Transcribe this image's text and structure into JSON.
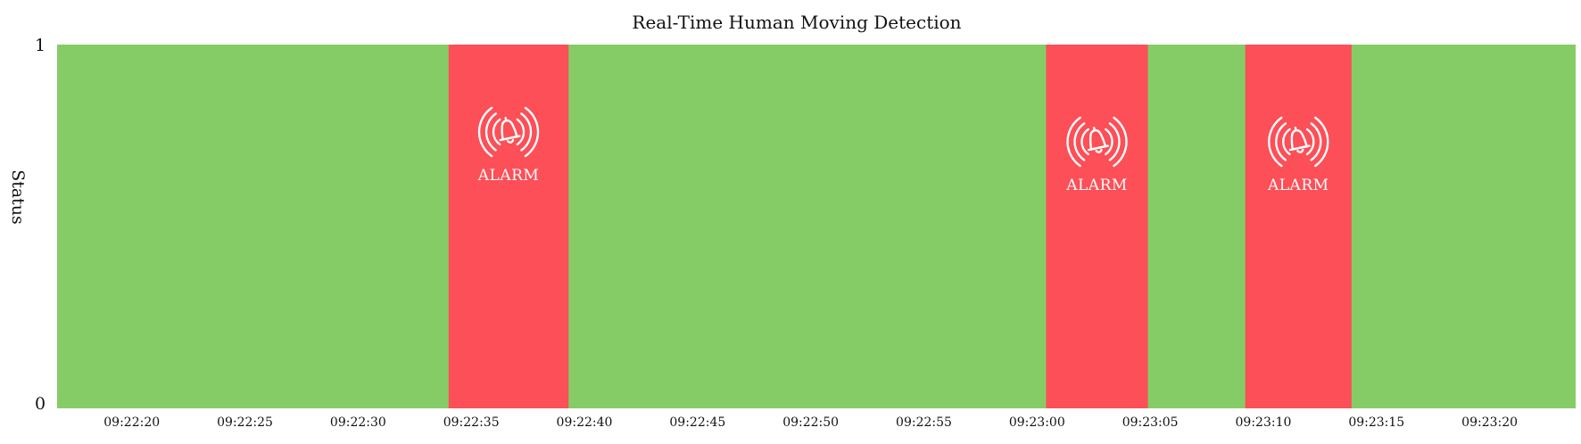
{
  "chart_data": {
    "type": "area",
    "title": "Real-Time Human Moving Detection",
    "xlabel": "",
    "ylabel": "Status",
    "ylim": [
      0,
      1
    ],
    "yticks": [
      "0",
      "1"
    ],
    "xticks": [
      "09:22:20",
      "09:22:25",
      "09:22:30",
      "09:22:35",
      "09:22:40",
      "09:22:45",
      "09:22:50",
      "09:22:55",
      "09:23:00",
      "09:23:05",
      "09:23:10",
      "09:23:15",
      "09:23:20"
    ],
    "xlim": [
      "09:22:16.7",
      "09:23:23.8"
    ],
    "grid": false,
    "legend": "none",
    "normal_color": "#86cc66",
    "alarm_color": "#fd4f57",
    "status_value": 1,
    "alarm_periods": [
      {
        "start": "09:22:34.0",
        "end": "09:22:39.3",
        "label": "ALARM",
        "icon": "alarm-bell-icon"
      },
      {
        "start": "09:23:00.4",
        "end": "09:23:04.9",
        "label": "ALARM",
        "icon": "alarm-bell-icon"
      },
      {
        "start": "09:23:09.2",
        "end": "09:23:13.9",
        "label": "ALARM",
        "icon": "alarm-bell-icon"
      }
    ]
  }
}
